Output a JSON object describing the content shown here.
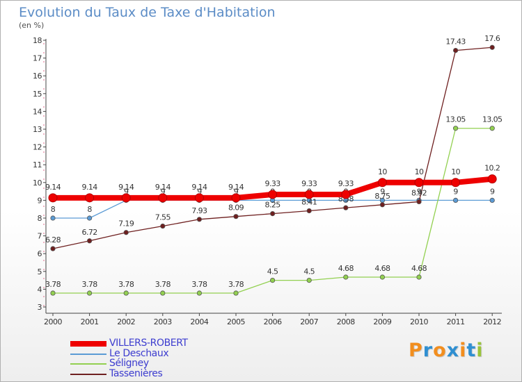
{
  "title": "Evolution du Taux de Taxe d'Habitation",
  "unit": "(en %)",
  "brand": {
    "text": "Proxiti",
    "colors": [
      "#f28e1e",
      "#2f8fd1",
      "#f28e1e",
      "#2f8fd1",
      "#f28e1e",
      "#2f8fd1",
      "#9ac43a"
    ]
  },
  "chart_data": {
    "type": "line",
    "categories": [
      "2000",
      "2001",
      "2002",
      "2003",
      "2004",
      "2005",
      "2006",
      "2007",
      "2008",
      "2009",
      "2010",
      "2011",
      "2012"
    ],
    "ylim": [
      3,
      18
    ],
    "yticks": [
      "3",
      "4",
      "5",
      "6",
      "7",
      "8",
      "9",
      "10",
      "11",
      "12",
      "13",
      "14",
      "15",
      "16",
      "17",
      "18"
    ],
    "grid": false,
    "legend_position": "bottom-left",
    "series": [
      {
        "name": "VILLERS-ROBERT",
        "color": "#ee0000",
        "style": "thick",
        "values": [
          9.14,
          9.14,
          9.14,
          9.14,
          9.14,
          9.14,
          9.33,
          9.33,
          9.33,
          10,
          10,
          10,
          10.2
        ],
        "labels": [
          "9.14",
          "9.14",
          "9.14",
          "9.14",
          "9.14",
          "9.14",
          "9.33",
          "9.33",
          "9.33",
          "10",
          "10",
          "10",
          "10.2"
        ]
      },
      {
        "name": "Le Deschaux",
        "color": "#5b9bd5",
        "style": "thin",
        "values": [
          8,
          8,
          9,
          9,
          9,
          9,
          9,
          9,
          9,
          9,
          9,
          9,
          9
        ],
        "labels": [
          "8",
          "8",
          "9",
          "9",
          "9",
          "9",
          "9",
          "9",
          "9",
          "9",
          "9",
          "9",
          "9"
        ]
      },
      {
        "name": "Séligney",
        "color": "#92d050",
        "style": "thin",
        "values": [
          3.78,
          3.78,
          3.78,
          3.78,
          3.78,
          3.78,
          4.5,
          4.5,
          4.68,
          4.68,
          4.68,
          13.05,
          13.05
        ],
        "labels": [
          "3.78",
          "3.78",
          "3.78",
          "3.78",
          "3.78",
          "3.78",
          "4.5",
          "4.5",
          "4.68",
          "4.68",
          "4.68",
          "13.05",
          "13.05"
        ]
      },
      {
        "name": "Tassenières",
        "color": "#6e1f1f",
        "style": "thin",
        "values": [
          6.28,
          6.72,
          7.19,
          7.55,
          7.93,
          8.09,
          8.25,
          8.41,
          8.58,
          8.75,
          8.92,
          17.43,
          17.6
        ],
        "labels": [
          "6.28",
          "6.72",
          "7.19",
          "7.55",
          "7.93",
          "8.09",
          "8.25",
          "8.41",
          "8.58",
          "8.75",
          "8.92",
          "17.43",
          "17.6"
        ]
      }
    ]
  }
}
